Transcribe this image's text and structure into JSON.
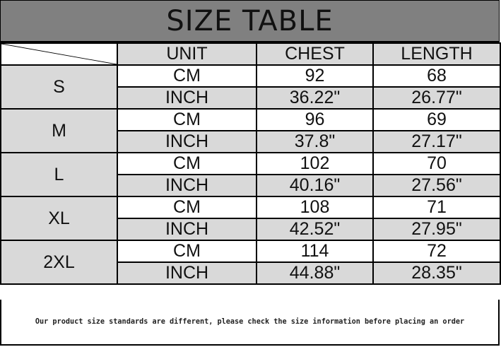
{
  "title": "SIZE TABLE",
  "headers": {
    "unit": "UNIT",
    "chest": "CHEST",
    "length": "LENGTH"
  },
  "rows": [
    {
      "size": "S",
      "cm": {
        "unit": "CM",
        "chest": "92",
        "length": "68"
      },
      "inch": {
        "unit": "INCH",
        "chest": "36.22\"",
        "length": "26.77\""
      }
    },
    {
      "size": "M",
      "cm": {
        "unit": "CM",
        "chest": "96",
        "length": "69"
      },
      "inch": {
        "unit": "INCH",
        "chest": "37.8\"",
        "length": "27.17\""
      }
    },
    {
      "size": "L",
      "cm": {
        "unit": "CM",
        "chest": "102",
        "length": "70"
      },
      "inch": {
        "unit": "INCH",
        "chest": "40.16\"",
        "length": "27.56\""
      }
    },
    {
      "size": "XL",
      "cm": {
        "unit": "CM",
        "chest": "108",
        "length": "71"
      },
      "inch": {
        "unit": "INCH",
        "chest": "42.52\"",
        "length": "27.95\""
      }
    },
    {
      "size": "2XL",
      "cm": {
        "unit": "CM",
        "chest": "114",
        "length": "72"
      },
      "inch": {
        "unit": "INCH",
        "chest": "44.88\"",
        "length": "28.35\""
      }
    }
  ],
  "note": "Our product size standards are different, please check the size information before placing an order"
}
